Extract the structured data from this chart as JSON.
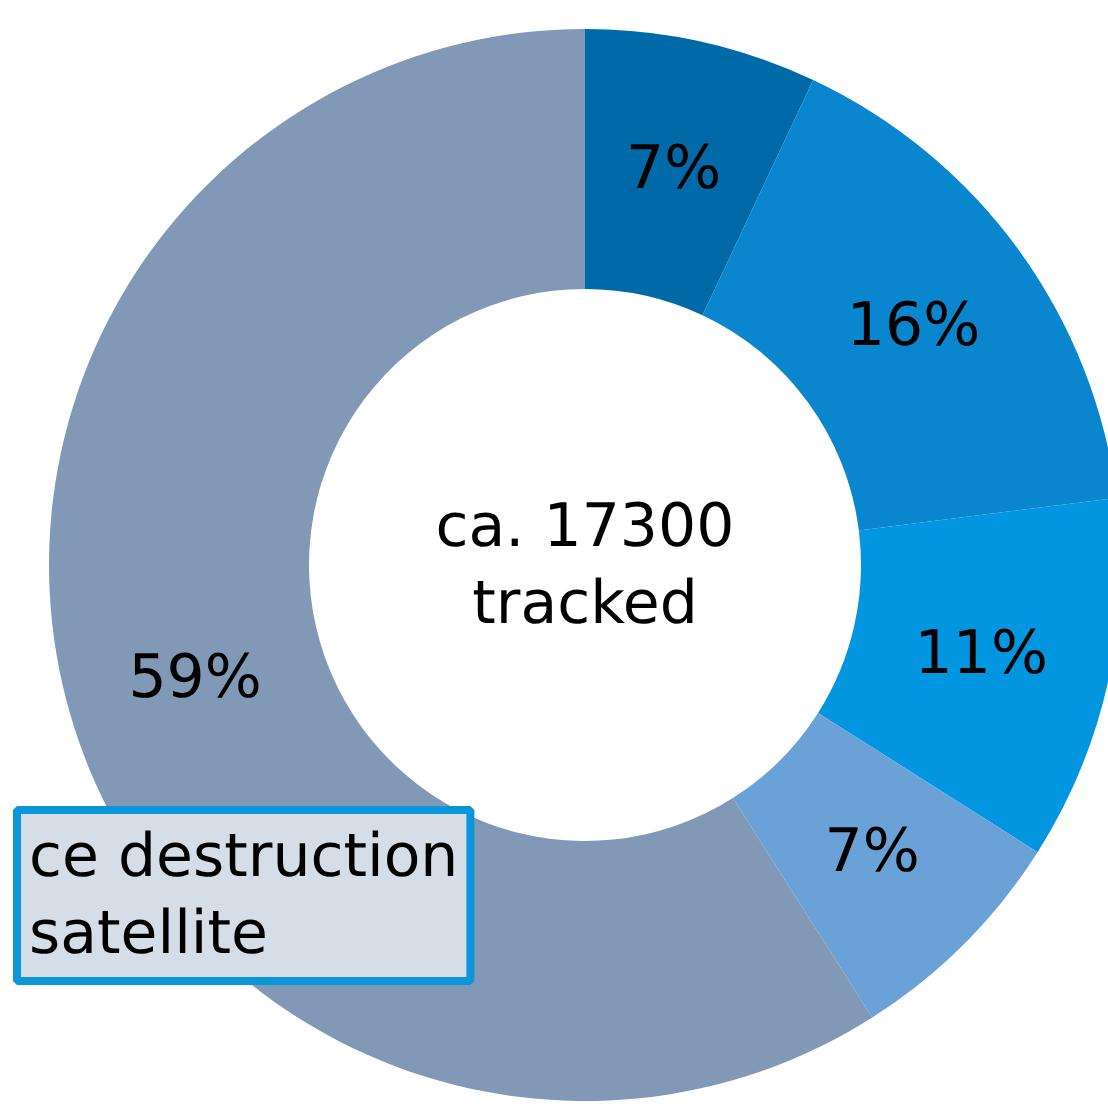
{
  "chart_data": {
    "type": "donut",
    "categories": [
      null,
      null,
      null,
      null,
      null
    ],
    "values": [
      7,
      16,
      11,
      7,
      59
    ],
    "value_labels": [
      "7%",
      "16%",
      "11%",
      "7%",
      "59%"
    ],
    "colors": [
      "#006aa8",
      "#0a86cf",
      "#0296e0",
      "#6aa2d8",
      "#8199b6"
    ],
    "annotations": [
      "ca. 17300\ntracked",
      "ce destruction\nsatellite"
    ]
  }
}
